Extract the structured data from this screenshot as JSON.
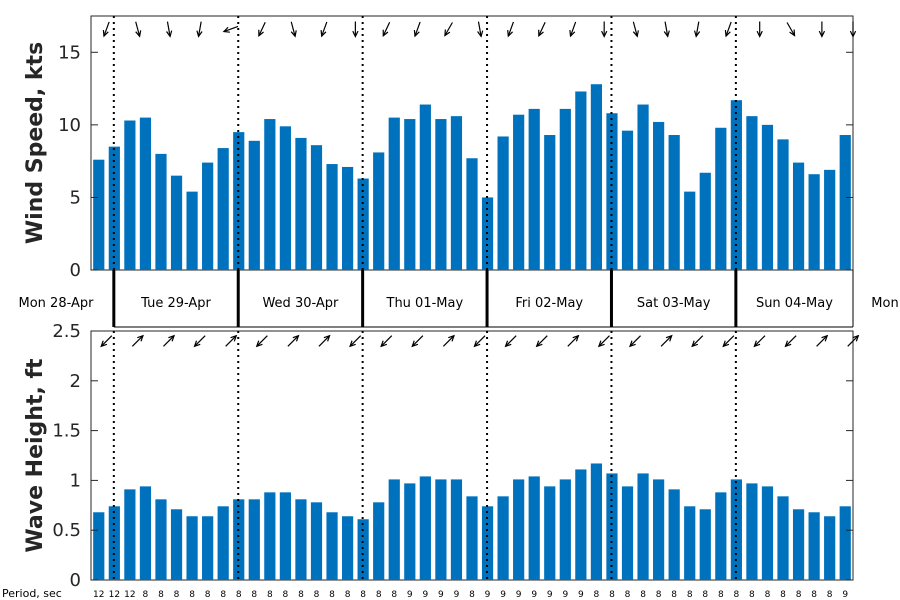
{
  "chart_data": [
    {
      "type": "bar",
      "ylabel": "Wind Speed, kts",
      "ylim": [
        0,
        17.5
      ],
      "yticks": [
        0,
        5,
        10,
        15
      ],
      "grid": false,
      "color": "#0072bd",
      "values": [
        7.6,
        8.5,
        10.3,
        10.5,
        8.0,
        6.5,
        5.4,
        7.4,
        8.4,
        9.5,
        8.9,
        10.4,
        9.9,
        9.1,
        8.6,
        7.3,
        7.1,
        6.3,
        8.1,
        10.5,
        10.4,
        11.4,
        10.4,
        10.6,
        7.7,
        5.0,
        9.2,
        10.7,
        11.1,
        9.3,
        11.1,
        12.3,
        12.8,
        10.8,
        9.6,
        11.4,
        10.2,
        9.3,
        5.4,
        6.7,
        9.8,
        11.7,
        10.6,
        10.0,
        9.0,
        7.4,
        6.6,
        6.9,
        9.3
      ],
      "direction_arrows_deg": [
        250,
        280,
        285,
        250,
        280,
        285,
        260,
        250,
        200,
        245,
        245,
        280,
        285,
        285,
        250,
        255,
        270,
        245,
        245,
        250,
        250,
        245,
        240,
        245,
        280,
        280,
        250,
        250,
        245,
        240,
        250,
        255,
        270,
        270,
        285,
        290,
        280,
        280,
        260,
        270,
        250,
        250,
        270,
        270,
        300,
        250,
        270,
        270,
        270
      ]
    },
    {
      "type": "bar",
      "ylabel": "Wave Height, ft",
      "ylim": [
        0,
        2.5
      ],
      "yticks": [
        0,
        0.5,
        1,
        1.5,
        2,
        2.5
      ],
      "ytick_labels": [
        "0",
        "0.5",
        "1",
        "1.5",
        "2",
        "2.5"
      ],
      "grid": false,
      "color": "#0072bd",
      "values": [
        0.68,
        0.74,
        0.91,
        0.94,
        0.81,
        0.71,
        0.64,
        0.64,
        0.74,
        0.81,
        0.81,
        0.88,
        0.88,
        0.81,
        0.78,
        0.68,
        0.64,
        0.61,
        0.78,
        1.01,
        0.97,
        1.04,
        1.01,
        1.01,
        0.84,
        0.74,
        0.84,
        1.01,
        1.04,
        0.94,
        1.01,
        1.11,
        1.17,
        1.07,
        0.94,
        1.07,
        1.01,
        0.91,
        0.74,
        0.71,
        0.88,
        1.01,
        0.97,
        0.94,
        0.84,
        0.71,
        0.68,
        0.64,
        0.74
      ],
      "direction_arrows_deg": [
        225,
        45,
        45,
        45,
        45,
        225,
        225,
        45,
        45,
        45,
        225,
        45,
        45,
        225,
        45,
        45,
        225,
        45,
        225,
        225,
        225,
        45,
        45,
        225,
        225,
        45,
        225,
        225,
        225,
        225,
        45,
        45,
        225,
        225,
        225,
        225,
        45,
        45,
        225,
        225,
        225,
        225,
        225,
        225,
        225,
        45,
        45,
        225,
        45
      ],
      "period_title": "Period, sec",
      "periods": [
        "12",
        "12",
        "12",
        "8",
        "8",
        "8",
        "8",
        "8",
        "8",
        "8",
        "8",
        "8",
        "8",
        "8",
        "8",
        "8",
        "8",
        "8",
        "8",
        "8",
        "9",
        "9",
        "9",
        "9",
        "8",
        "9",
        "9",
        "9",
        "9",
        "9",
        "9",
        "9",
        "8",
        "8",
        "8",
        "8",
        "8",
        "8",
        "8",
        "8",
        "8",
        "8",
        "8",
        "8",
        "8",
        "8",
        "8",
        "8",
        "9"
      ]
    }
  ],
  "day_labels": [
    "Mon 28-Apr",
    "Tue 29-Apr",
    "Wed 30-Apr",
    "Thu 01-May",
    "Fri 02-May",
    "Sat 03-May",
    "Sun 04-May",
    "Mon"
  ]
}
